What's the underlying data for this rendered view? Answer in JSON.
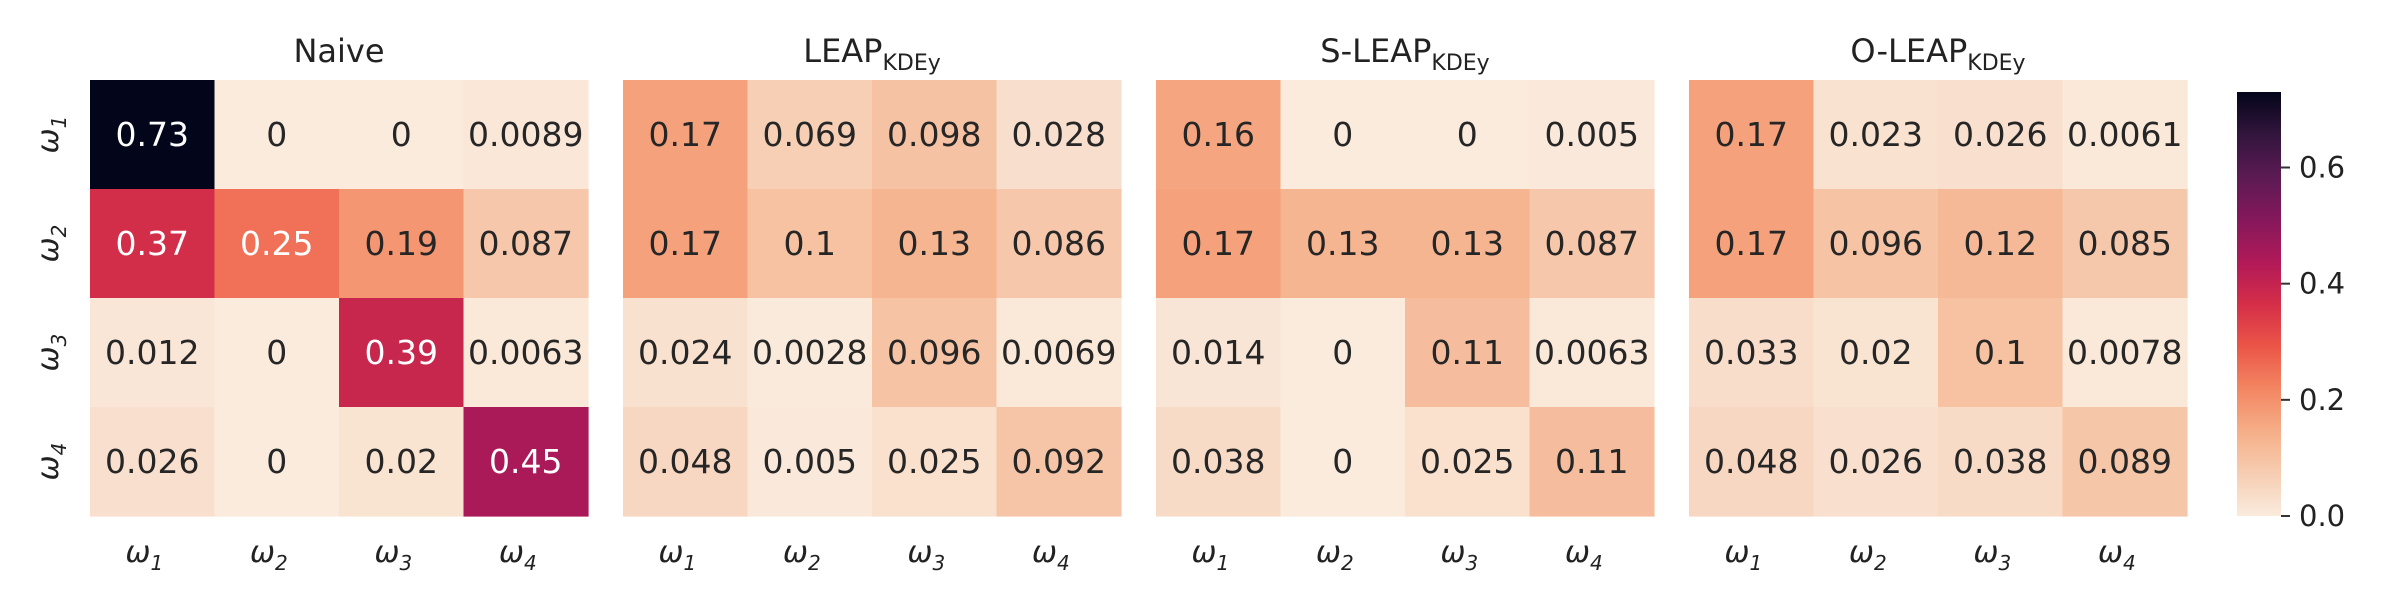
{
  "chart_data": [
    {
      "type": "heatmap",
      "title": "Naive",
      "title_sub": "",
      "row_labels": [
        {
          "base": "ω",
          "sub": "1"
        },
        {
          "base": "ω",
          "sub": "2"
        },
        {
          "base": "ω",
          "sub": "3"
        },
        {
          "base": "ω",
          "sub": "4"
        }
      ],
      "col_labels": [
        {
          "base": "ω",
          "sub": "1"
        },
        {
          "base": "ω",
          "sub": "2"
        },
        {
          "base": "ω",
          "sub": "3"
        },
        {
          "base": "ω",
          "sub": "4"
        }
      ],
      "values": [
        [
          0.73,
          0,
          0,
          0.0089
        ],
        [
          0.37,
          0.25,
          0.19,
          0.087
        ],
        [
          0.012,
          0,
          0.39,
          0.0063
        ],
        [
          0.026,
          0,
          0.02,
          0.45
        ]
      ],
      "cell_text": [
        [
          "0.73",
          "0",
          "0",
          "0.0089"
        ],
        [
          "0.37",
          "0.25",
          "0.19",
          "0.087"
        ],
        [
          "0.012",
          "0",
          "0.39",
          "0.0063"
        ],
        [
          "0.026",
          "0",
          "0.02",
          "0.45"
        ]
      ]
    },
    {
      "type": "heatmap",
      "title": "LEAP",
      "title_sub": "KDEy",
      "row_labels": [],
      "col_labels": [
        {
          "base": "ω",
          "sub": "1"
        },
        {
          "base": "ω",
          "sub": "2"
        },
        {
          "base": "ω",
          "sub": "3"
        },
        {
          "base": "ω",
          "sub": "4"
        }
      ],
      "values": [
        [
          0.17,
          0.069,
          0.098,
          0.028
        ],
        [
          0.17,
          0.1,
          0.13,
          0.086
        ],
        [
          0.024,
          0.0028,
          0.096,
          0.0069
        ],
        [
          0.048,
          0.005,
          0.025,
          0.092
        ]
      ],
      "cell_text": [
        [
          "0.17",
          "0.069",
          "0.098",
          "0.028"
        ],
        [
          "0.17",
          "0.1",
          "0.13",
          "0.086"
        ],
        [
          "0.024",
          "0.0028",
          "0.096",
          "0.0069"
        ],
        [
          "0.048",
          "0.005",
          "0.025",
          "0.092"
        ]
      ]
    },
    {
      "type": "heatmap",
      "title": "S-LEAP",
      "title_sub": "KDEy",
      "row_labels": [],
      "col_labels": [
        {
          "base": "ω",
          "sub": "1"
        },
        {
          "base": "ω",
          "sub": "2"
        },
        {
          "base": "ω",
          "sub": "3"
        },
        {
          "base": "ω",
          "sub": "4"
        }
      ],
      "values": [
        [
          0.16,
          0,
          0,
          0.005
        ],
        [
          0.17,
          0.13,
          0.13,
          0.087
        ],
        [
          0.014,
          0,
          0.11,
          0.0063
        ],
        [
          0.038,
          0,
          0.025,
          0.11
        ]
      ],
      "cell_text": [
        [
          "0.16",
          "0",
          "0",
          "0.005"
        ],
        [
          "0.17",
          "0.13",
          "0.13",
          "0.087"
        ],
        [
          "0.014",
          "0",
          "0.11",
          "0.0063"
        ],
        [
          "0.038",
          "0",
          "0.025",
          "0.11"
        ]
      ]
    },
    {
      "type": "heatmap",
      "title": "O-LEAP",
      "title_sub": "KDEy",
      "row_labels": [],
      "col_labels": [
        {
          "base": "ω",
          "sub": "1"
        },
        {
          "base": "ω",
          "sub": "2"
        },
        {
          "base": "ω",
          "sub": "3"
        },
        {
          "base": "ω",
          "sub": "4"
        }
      ],
      "values": [
        [
          0.17,
          0.023,
          0.026,
          0.0061
        ],
        [
          0.17,
          0.096,
          0.12,
          0.085
        ],
        [
          0.033,
          0.02,
          0.1,
          0.0078
        ],
        [
          0.048,
          0.026,
          0.038,
          0.089
        ]
      ],
      "cell_text": [
        [
          "0.17",
          "0.023",
          "0.026",
          "0.0061"
        ],
        [
          "0.17",
          "0.096",
          "0.12",
          "0.085"
        ],
        [
          "0.033",
          "0.02",
          "0.1",
          "0.0078"
        ],
        [
          "0.048",
          "0.026",
          "0.038",
          "0.089"
        ]
      ]
    }
  ],
  "colorbar": {
    "colormap": "rocket_r",
    "range": [
      0,
      0.73
    ],
    "ticks": [
      0.0,
      0.2,
      0.4,
      0.6
    ],
    "tick_labels": [
      "0.0",
      "0.2",
      "0.4",
      "0.6"
    ]
  }
}
